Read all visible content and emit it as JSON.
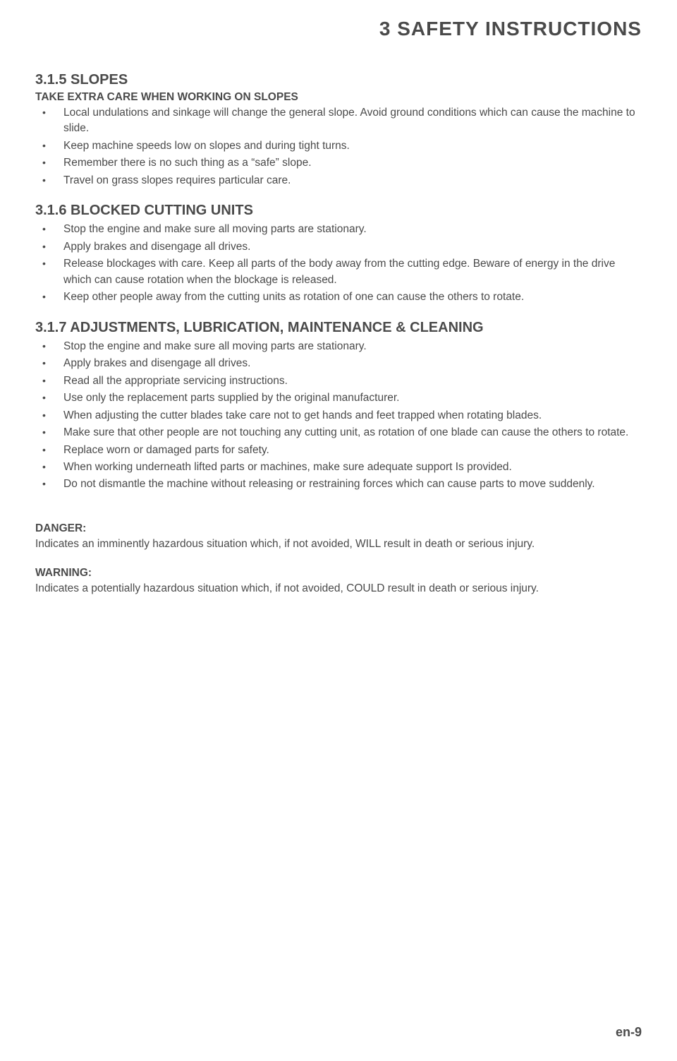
{
  "chapter_title": "3  SAFETY INSTRUCTIONS",
  "section_315": {
    "heading": "3.1.5   SLOPES",
    "subheading": "TAKE EXTRA CARE WHEN WORKING ON  SLOPES",
    "items": [
      "Local undulations and sinkage will change the general slope. Avoid ground conditions which can cause the machine to slide.",
      "Keep machine speeds low on slopes and during tight turns.",
      "Remember there is no such thing as a “safe” slope.",
      "Travel on grass slopes requires particular care."
    ]
  },
  "section_316": {
    "heading": "3.1.6   BLOCKED CUTTING UNITS",
    "items": [
      "Stop the engine and make sure all moving parts are stationary.",
      "Apply brakes and disengage all drives.",
      "Release blockages with care. Keep all parts of the body away from the cutting edge. Beware of energy in the drive which can cause rotation when the blockage is released.",
      "Keep other people away from the cutting units as rotation of one can cause the others to rotate."
    ]
  },
  "section_317": {
    "heading": "3.1.7   ADJUSTMENTS, LUBRICATION, MAINTENANCE & CLEANING",
    "items": [
      "Stop the engine and make sure all moving parts are stationary.",
      "Apply brakes and disengage all drives.",
      "Read all the appropriate servicing instructions.",
      "Use only the replacement parts supplied by the original manufacturer.",
      "When adjusting the cutter blades take care not to get hands and feet trapped when rotating blades.",
      "Make sure that other people are not touching any cutting unit, as rotation of one blade can cause the others to rotate.",
      "Replace worn or damaged parts for safety.",
      "When working underneath lifted parts or machines, make sure adequate support Is provided.",
      "Do not dismantle the machine without releasing or restraining forces which can cause parts to move suddenly."
    ]
  },
  "definitions": {
    "danger_term": "DANGER:",
    "danger_text": "Indicates an imminently hazardous situation which, if not avoided, WILL result in death or serious injury.",
    "warning_term": "WARNING:",
    "warning_text": "Indicates a potentially hazardous situation which, if not avoided, COULD result in death or serious injury."
  },
  "page_number": "en-9"
}
